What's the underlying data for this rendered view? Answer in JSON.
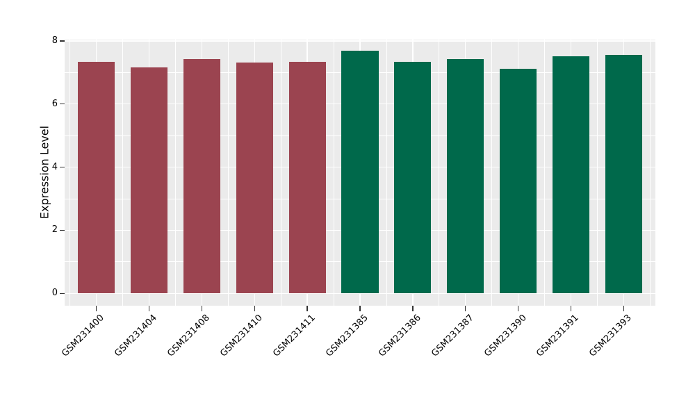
{
  "chart_data": {
    "type": "bar",
    "title": "",
    "xlabel": "",
    "ylabel": "Expression Level",
    "categories": [
      "GSM231400",
      "GSM231404",
      "GSM231408",
      "GSM231410",
      "GSM231411",
      "GSM231385",
      "GSM231386",
      "GSM231387",
      "GSM231390",
      "GSM231391",
      "GSM231393"
    ],
    "values": [
      7.33,
      7.17,
      7.42,
      7.31,
      7.33,
      7.69,
      7.33,
      7.43,
      7.12,
      7.52,
      7.55
    ],
    "bar_color_index": [
      0,
      0,
      0,
      0,
      0,
      1,
      1,
      1,
      1,
      1,
      1
    ],
    "series": [
      {
        "name": "group-red",
        "color": "#9B4450",
        "members": [
          "GSM231400",
          "GSM231404",
          "GSM231408",
          "GSM231410",
          "GSM231411"
        ]
      },
      {
        "name": "group-green",
        "color": "#00694B",
        "members": [
          "GSM231385",
          "GSM231386",
          "GSM231387",
          "GSM231390",
          "GSM231391",
          "GSM231393"
        ]
      }
    ],
    "yticks": [
      0,
      2,
      4,
      6,
      8
    ],
    "yticks_minor": [
      1,
      3,
      5,
      7
    ],
    "ylim": [
      -0.39,
      8.04
    ],
    "bar_width_fraction": 0.7,
    "x_tick_rotation_deg": 45,
    "legend": "none",
    "grid": {
      "panel_bg": "#EBEBEB",
      "major_color": "#FFFFFF",
      "minor_color": "#FFFFFF"
    }
  },
  "colors": {
    "figure_bg": "#FFFFFF",
    "tick_mark": "#333333",
    "text": "#000000"
  }
}
